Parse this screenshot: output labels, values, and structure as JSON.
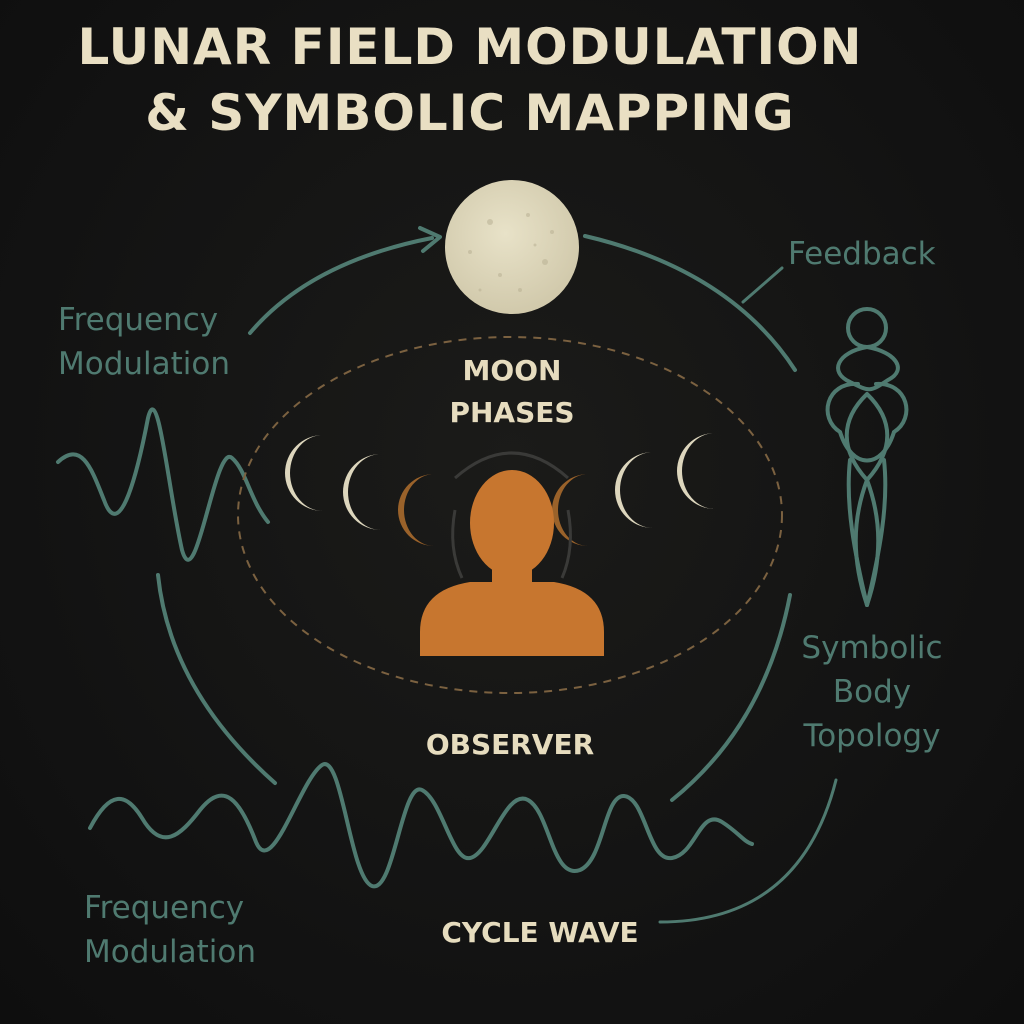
{
  "title": {
    "line1": "LUNAR FIELD MODULATION",
    "line2": "& SYMBOLIC MAPPING"
  },
  "labels": {
    "freq_mod_top": [
      "Frequency",
      "Modulation"
    ],
    "feedback": "Feedback",
    "moon_phases": [
      "MOON",
      "PHASES"
    ],
    "observer": "OBSERVER",
    "symbolic_body": [
      "Symbolic",
      "Body",
      "Topology"
    ],
    "freq_mod_bottom": [
      "Frequency",
      "Modulation"
    ],
    "cycle_wave": "CYCLE WAVE"
  },
  "colors": {
    "background": "#131313",
    "title": "#e9dfc3",
    "teal_line": "#4f7a70",
    "moon": "#ddd6bd",
    "observer": "#c7762f",
    "phase_dark": "#9a622a",
    "dashed_orbit": "#7b6140"
  },
  "icons": [
    "full-moon-icon",
    "crescent-moon-icon",
    "observer-silhouette-icon",
    "symbolic-body-figure-icon",
    "arrow-head-icon"
  ]
}
